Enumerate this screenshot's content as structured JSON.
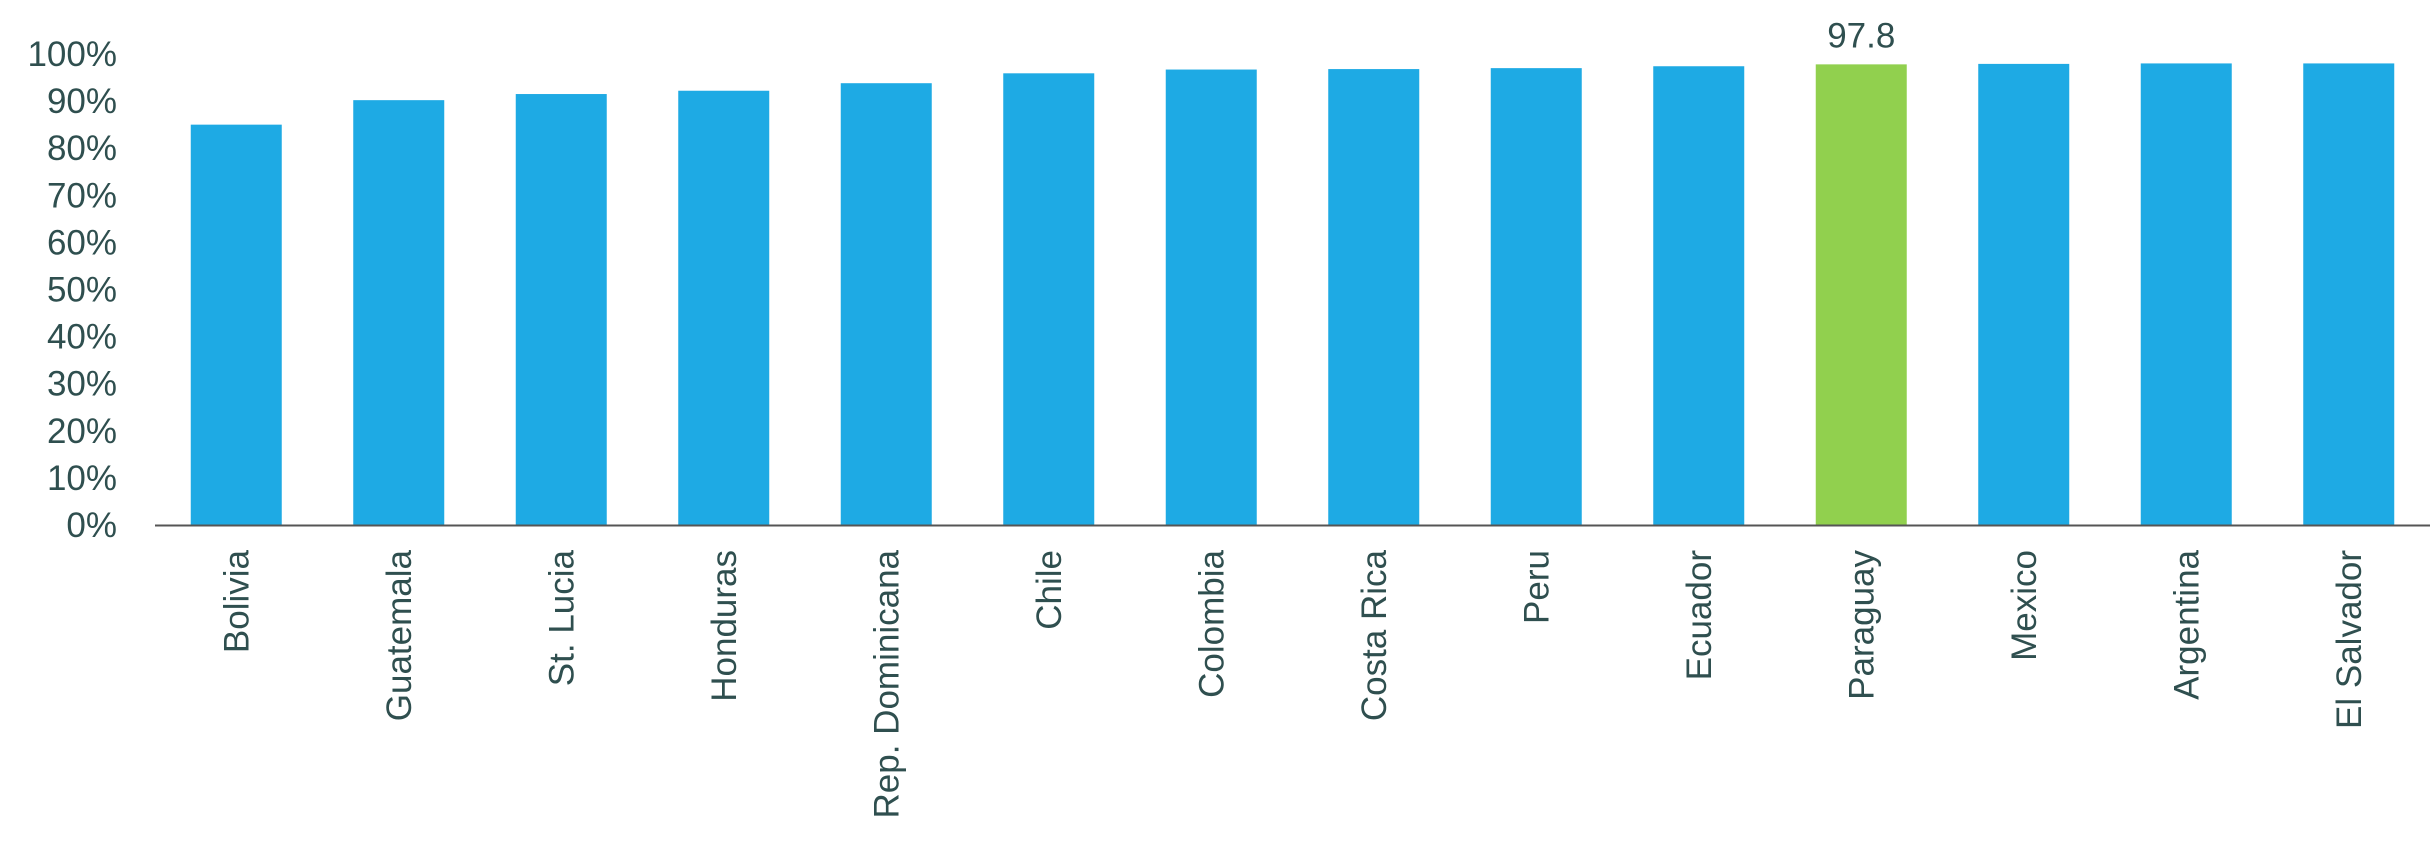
{
  "chart_data": {
    "type": "bar",
    "title": "",
    "xlabel": "",
    "ylabel": "",
    "ylim": [
      0,
      100
    ],
    "yticks": [
      0,
      10,
      20,
      30,
      40,
      50,
      60,
      70,
      80,
      90,
      100
    ],
    "ytick_labels": [
      "0%",
      "10%",
      "20%",
      "30%",
      "40%",
      "50%",
      "60%",
      "70%",
      "80%",
      "90%",
      "100%"
    ],
    "categories": [
      "Bolivia",
      "Guatemala",
      "St. Lucia",
      "Honduras",
      "Rep. Dominicana",
      "Chile",
      "Colombia",
      "Costa Rica",
      "Peru",
      "Ecuador",
      "Paraguay",
      "Mexico",
      "Argentina",
      "El Salvador"
    ],
    "values": [
      85.0,
      90.2,
      91.5,
      92.2,
      93.8,
      95.9,
      96.7,
      96.8,
      97.0,
      97.4,
      97.8,
      97.9,
      98.0,
      98.0
    ],
    "highlight_index": 10,
    "data_labels": [
      {
        "index": 10,
        "text": "97.8"
      }
    ],
    "grid": false,
    "legend": "none",
    "colors": {
      "bar": "#1eaae4",
      "highlight": "#91d04e",
      "text": "#2f4f4f",
      "axis": "#555555"
    }
  }
}
